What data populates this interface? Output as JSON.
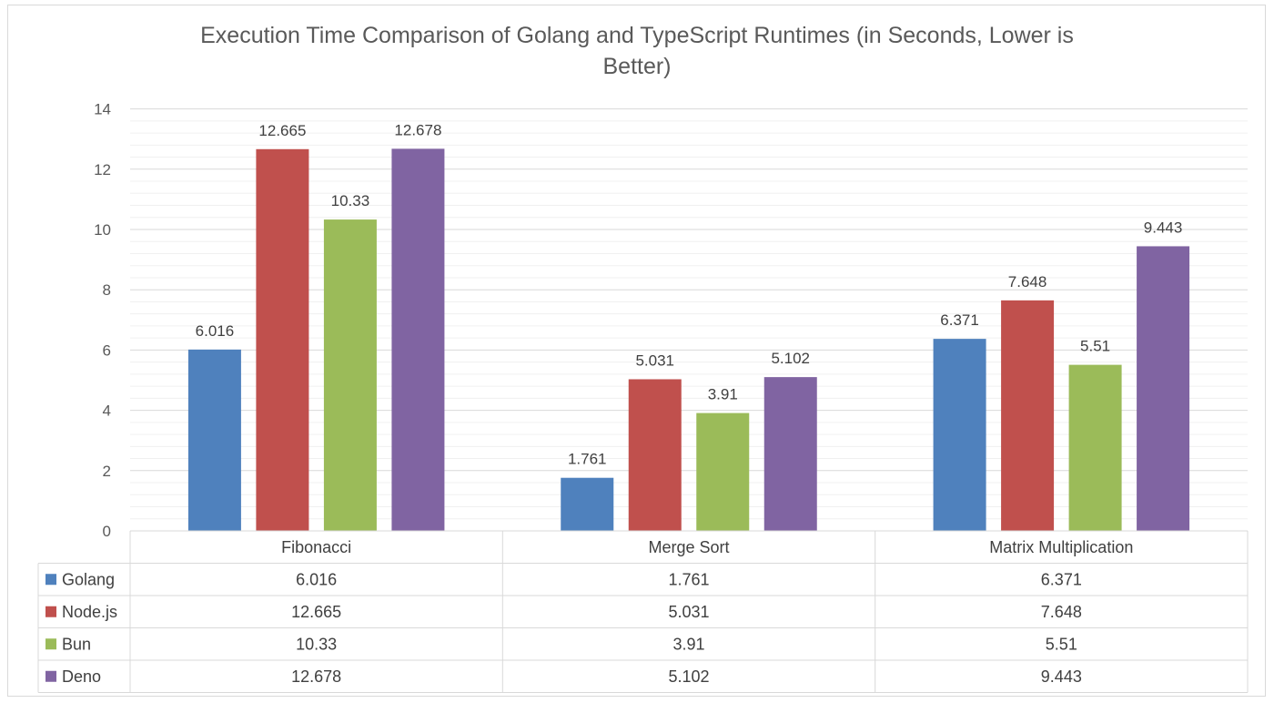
{
  "chart_data": {
    "type": "bar",
    "title": "Execution Time Comparison of Golang and TypeScript Runtimes (in Seconds, Lower is Better)",
    "xlabel": "",
    "ylabel": "",
    "ylim": [
      0,
      14
    ],
    "yticks": [
      0,
      2,
      4,
      6,
      8,
      10,
      12,
      14
    ],
    "grid": true,
    "legend": "data-table",
    "categories": [
      "Fibonacci",
      "Merge Sort",
      "Matrix Multiplication"
    ],
    "series": [
      {
        "name": "Golang",
        "color": "#4f81bd",
        "values": [
          6.016,
          1.761,
          6.371
        ],
        "labels": [
          "6.016",
          "1.761",
          "6.371"
        ]
      },
      {
        "name": "Node.js",
        "color": "#c0504d",
        "values": [
          12.665,
          5.031,
          7.648
        ],
        "labels": [
          "12.665",
          "5.031",
          "7.648"
        ]
      },
      {
        "name": "Bun",
        "color": "#9bbb59",
        "values": [
          10.33,
          3.91,
          5.51
        ],
        "labels": [
          "10.33",
          "3.91",
          "5.51"
        ]
      },
      {
        "name": "Deno",
        "color": "#8064a2",
        "values": [
          12.678,
          5.102,
          9.443
        ],
        "labels": [
          "12.678",
          "5.102",
          "9.443"
        ]
      }
    ]
  }
}
